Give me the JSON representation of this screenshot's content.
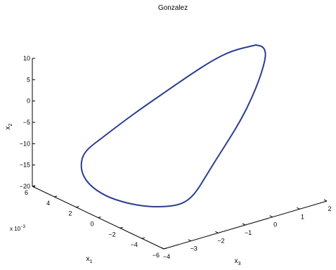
{
  "chart_data": {
    "type": "line",
    "projection": "3d",
    "title": "Gonzalez",
    "axes": {
      "x1": {
        "label": "x",
        "label_sub": "1",
        "ticks": [
          "6",
          "4",
          "2",
          "0",
          "−2",
          "−4",
          "−6"
        ],
        "multiplier": "x 10",
        "multiplier_exp": "−3"
      },
      "x2": {
        "label": "x",
        "label_sub": "2",
        "ticks": [
          "10",
          "5",
          "0",
          "−5",
          "−10",
          "−15",
          "−20"
        ]
      },
      "x3": {
        "label": "x",
        "label_sub": "3",
        "ticks": [
          "−4",
          "−3",
          "−2",
          "−1",
          "0",
          "1",
          "2"
        ]
      }
    },
    "series": [
      {
        "color": "#2b3d8f",
        "closed": true,
        "description_points_x3_x2": [
          [
            -3.1,
            9.5
          ],
          [
            -2.6,
            6.0
          ],
          [
            -2.1,
            2.5
          ],
          [
            -1.6,
            -1.0
          ],
          [
            -1.1,
            -4.5
          ],
          [
            -0.6,
            -7.5
          ],
          [
            -0.1,
            -9.5
          ],
          [
            0.3,
            -11.0
          ],
          [
            0.5,
            -11.5
          ],
          [
            0.3,
            -12.0
          ],
          [
            -0.6,
            -13.0
          ],
          [
            -1.6,
            -13.5
          ],
          [
            -2.4,
            -12.5
          ],
          [
            -3.0,
            -10.0
          ],
          [
            -3.2,
            -6.0
          ],
          [
            -3.2,
            0.0
          ],
          [
            -3.2,
            5.0
          ],
          [
            -3.1,
            9.5
          ]
        ]
      }
    ]
  }
}
